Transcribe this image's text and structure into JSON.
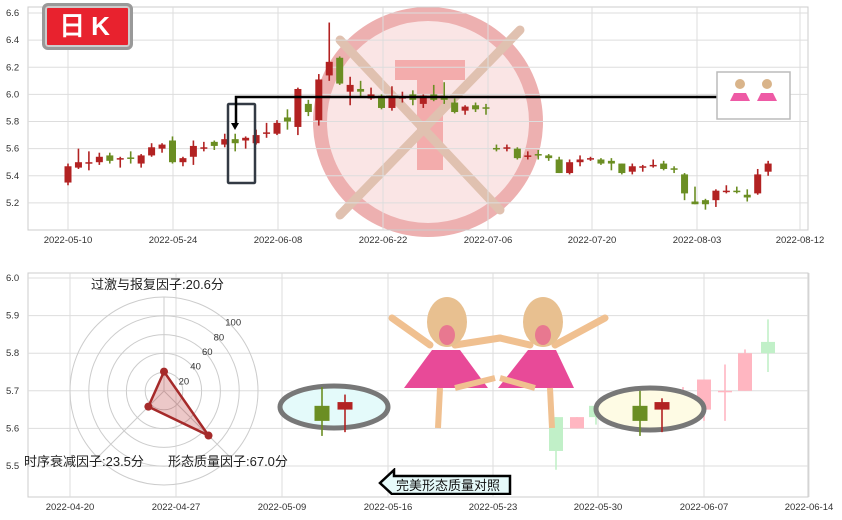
{
  "badge": {
    "label": "日K"
  },
  "colors": {
    "up": "#b22222",
    "down": "#6b8e23",
    "up_pale": "#ffb6c1",
    "down_pale": "#c1f0c8",
    "watermark": "#e05050"
  },
  "chart_data": [
    {
      "type": "candlestick",
      "title": "",
      "ylim": [
        5.0,
        6.6
      ],
      "yticks": [
        "5.2",
        "5.4",
        "5.6",
        "5.8",
        "6.0",
        "6.2",
        "6.4",
        "6.6"
      ],
      "xticks": [
        "2022-05-10",
        "2022-05-24",
        "2022-06-08",
        "2022-06-22",
        "2022-07-06",
        "2022-07-20",
        "2022-08-03",
        "2022-08-12"
      ],
      "grid": true,
      "candles": [
        [
          5.35,
          5.49,
          5.33,
          5.47
        ],
        [
          5.46,
          5.6,
          5.45,
          5.5
        ],
        [
          5.49,
          5.58,
          5.44,
          5.5
        ],
        [
          5.5,
          5.57,
          5.48,
          5.54
        ],
        [
          5.55,
          5.57,
          5.49,
          5.51
        ],
        [
          5.52,
          5.54,
          5.46,
          5.53
        ],
        [
          5.535,
          5.58,
          5.49,
          5.53
        ],
        [
          5.49,
          5.56,
          5.46,
          5.55
        ],
        [
          5.55,
          5.64,
          5.54,
          5.61
        ],
        [
          5.6,
          5.64,
          5.57,
          5.63
        ],
        [
          5.66,
          5.69,
          5.49,
          5.5
        ],
        [
          5.5,
          5.54,
          5.47,
          5.53
        ],
        [
          5.54,
          5.66,
          5.48,
          5.62
        ],
        [
          5.6,
          5.65,
          5.58,
          5.61
        ],
        [
          5.65,
          5.66,
          5.59,
          5.62
        ],
        [
          5.63,
          5.71,
          5.61,
          5.67
        ],
        [
          5.67,
          5.71,
          5.58,
          5.64
        ],
        [
          5.66,
          5.69,
          5.6,
          5.68
        ],
        [
          5.64,
          5.74,
          5.63,
          5.7
        ],
        [
          5.715,
          5.79,
          5.68,
          5.72
        ],
        [
          5.71,
          5.81,
          5.7,
          5.79
        ],
        [
          5.83,
          5.89,
          5.74,
          5.8
        ],
        [
          5.76,
          6.05,
          5.7,
          6.04
        ],
        [
          5.93,
          5.96,
          5.84,
          5.87
        ],
        [
          5.81,
          6.15,
          5.77,
          6.11
        ],
        [
          6.14,
          6.53,
          6.1,
          6.24
        ],
        [
          6.27,
          6.28,
          6.07,
          6.08
        ],
        [
          6.02,
          6.13,
          5.92,
          6.07
        ],
        [
          6.04,
          6.1,
          5.98,
          6.02
        ],
        [
          5.97,
          6.05,
          5.96,
          6.0
        ],
        [
          5.99,
          6.0,
          5.89,
          5.9
        ],
        [
          5.9,
          6.06,
          5.88,
          5.99
        ],
        [
          5.975,
          6.02,
          5.94,
          5.98
        ],
        [
          6.0,
          6.03,
          5.92,
          5.96
        ],
        [
          5.93,
          6.0,
          5.9,
          5.99
        ],
        [
          6.0,
          6.07,
          5.95,
          5.96
        ],
        [
          5.99,
          6.09,
          5.93,
          5.96
        ],
        [
          5.94,
          5.97,
          5.86,
          5.87
        ],
        [
          5.88,
          5.92,
          5.85,
          5.91
        ],
        [
          5.92,
          5.94,
          5.87,
          5.89
        ],
        [
          5.905,
          5.93,
          5.85,
          5.9
        ],
        [
          5.605,
          5.63,
          5.58,
          5.6
        ],
        [
          5.6,
          5.63,
          5.58,
          5.61
        ],
        [
          5.6,
          5.61,
          5.52,
          5.53
        ],
        [
          5.54,
          5.58,
          5.52,
          5.55
        ],
        [
          5.56,
          5.59,
          5.52,
          5.55
        ],
        [
          5.55,
          5.56,
          5.51,
          5.53
        ],
        [
          5.52,
          5.54,
          5.42,
          5.42
        ],
        [
          5.42,
          5.52,
          5.41,
          5.5
        ],
        [
          5.5,
          5.55,
          5.47,
          5.52
        ],
        [
          5.525,
          5.54,
          5.51,
          5.53
        ],
        [
          5.52,
          5.53,
          5.48,
          5.49
        ],
        [
          5.51,
          5.53,
          5.44,
          5.49
        ],
        [
          5.49,
          5.49,
          5.41,
          5.42
        ],
        [
          5.43,
          5.49,
          5.41,
          5.47
        ],
        [
          5.46,
          5.48,
          5.43,
          5.47
        ],
        [
          5.475,
          5.52,
          5.46,
          5.48
        ],
        [
          5.49,
          5.51,
          5.44,
          5.45
        ],
        [
          5.455,
          5.47,
          5.42,
          5.45
        ],
        [
          5.41,
          5.42,
          5.22,
          5.27
        ],
        [
          5.21,
          5.32,
          5.19,
          5.19
        ],
        [
          5.22,
          5.23,
          5.15,
          5.19
        ],
        [
          5.22,
          5.3,
          5.17,
          5.29
        ],
        [
          5.28,
          5.33,
          5.27,
          5.29
        ],
        [
          5.29,
          5.32,
          5.27,
          5.28
        ],
        [
          5.26,
          5.3,
          5.21,
          5.24
        ],
        [
          5.27,
          5.45,
          5.26,
          5.41
        ],
        [
          5.43,
          5.51,
          5.4,
          5.49
        ]
      ],
      "annotation": {
        "level": 5.99
      }
    },
    {
      "type": "candlestick",
      "title": "",
      "ylim": [
        5.41,
        6.0
      ],
      "yticks": [
        "5.5",
        "5.6",
        "5.7",
        "5.8",
        "5.9",
        "6.0"
      ],
      "xticks": [
        "2022-04-20",
        "2022-04-27",
        "2022-05-09",
        "2022-05-16",
        "2022-05-23",
        "2022-05-30",
        "2022-06-07",
        "2022-06-14"
      ],
      "grid": true,
      "highlight_left": [
        [
          5.66,
          5.71,
          5.58,
          5.62
        ],
        [
          5.67,
          5.69,
          5.59,
          5.65
        ]
      ],
      "highlight_right": [
        [
          5.66,
          5.7,
          5.58,
          5.62
        ],
        [
          5.67,
          5.68,
          5.59,
          5.65
        ]
      ],
      "pale_candles": [
        [
          0,
          5.63,
          5.63,
          5.49,
          5.54
        ],
        [
          1,
          5.63,
          5.63,
          5.6,
          5.6
        ],
        [
          0,
          5.66,
          5.66,
          5.61,
          5.63
        ],
        [
          1,
          5.64,
          5.69,
          5.61,
          5.66
        ],
        [
          1,
          5.68,
          5.71,
          5.62,
          5.67
        ],
        [
          1,
          5.65,
          5.73,
          5.62,
          5.73
        ],
        [
          1,
          5.7,
          5.77,
          5.62,
          5.7
        ],
        [
          1,
          5.7,
          5.81,
          5.7,
          5.8
        ],
        [
          0,
          5.83,
          5.89,
          5.75,
          5.8
        ]
      ],
      "radar": {
        "rings": [
          "20",
          "40",
          "60",
          "80",
          "100"
        ],
        "axes": [
          {
            "label": "过激与报复因子:20.6分",
            "value": 20.6
          },
          {
            "label": "形态质量因子:67.0分",
            "value": 67.0
          },
          {
            "label": "时序衰减因子:23.5分",
            "value": 23.5
          }
        ]
      }
    }
  ],
  "compare_button": {
    "label": "完美形态质量对照"
  }
}
